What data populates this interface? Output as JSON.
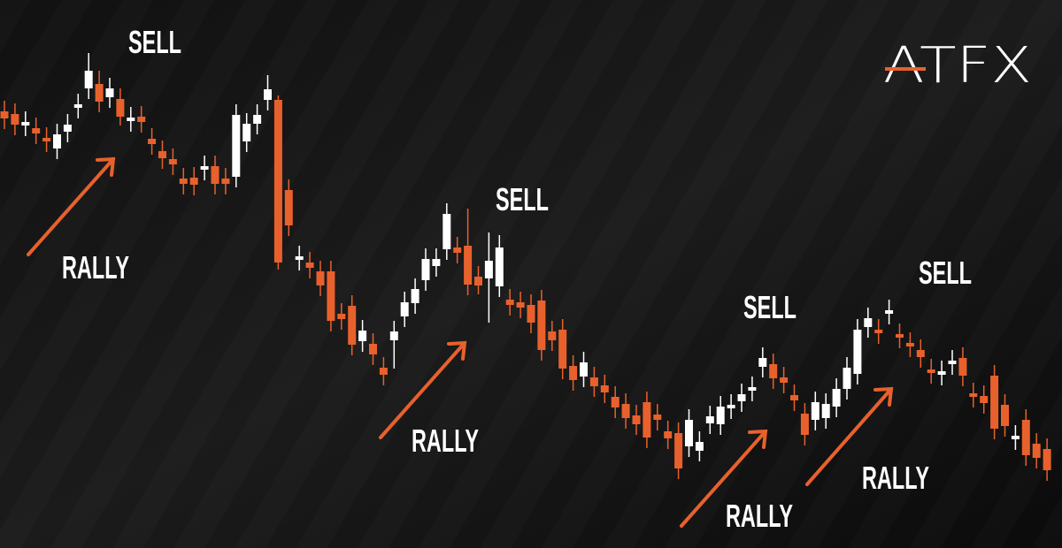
{
  "chart_data": {
    "type": "candlestick",
    "up_color": "#ffffff",
    "down_color": "#e8612c",
    "ylim": [
      0,
      620
    ],
    "ohlc": [
      [
        494,
        506,
        474,
        486
      ],
      [
        491,
        503,
        467,
        479
      ],
      [
        478,
        494,
        466,
        482
      ],
      [
        475,
        487,
        457,
        469
      ],
      [
        464,
        476,
        448,
        460
      ],
      [
        452,
        480,
        440,
        468
      ],
      [
        471,
        491,
        459,
        479
      ],
      [
        498,
        514,
        486,
        502
      ],
      [
        520,
        560,
        508,
        540
      ],
      [
        525,
        540,
        493,
        505
      ],
      [
        510,
        532,
        498,
        520
      ],
      [
        508,
        520,
        478,
        488
      ],
      [
        483,
        499,
        471,
        487
      ],
      [
        488,
        500,
        470,
        482
      ],
      [
        463,
        475,
        445,
        457
      ],
      [
        449,
        461,
        429,
        441
      ],
      [
        440,
        452,
        422,
        434
      ],
      [
        418,
        430,
        400,
        412
      ],
      [
        419,
        431,
        399,
        411
      ],
      [
        428,
        444,
        416,
        432
      ],
      [
        432,
        444,
        400,
        412
      ],
      [
        418,
        430,
        400,
        412
      ],
      [
        420,
        502,
        408,
        490
      ],
      [
        460,
        492,
        448,
        480
      ],
      [
        480,
        502,
        468,
        490
      ],
      [
        507,
        535,
        495,
        519
      ],
      [
        507,
        512,
        315,
        323
      ],
      [
        405,
        417,
        353,
        365
      ],
      [
        326,
        342,
        314,
        330
      ],
      [
        323,
        335,
        305,
        317
      ],
      [
        313,
        325,
        285,
        297
      ],
      [
        313,
        325,
        245,
        257
      ],
      [
        265,
        277,
        247,
        259
      ],
      [
        274,
        286,
        218,
        230
      ],
      [
        234,
        258,
        222,
        246
      ],
      [
        231,
        243,
        207,
        219
      ],
      [
        204,
        216,
        184,
        196
      ],
      [
        235,
        257,
        203,
        245
      ],
      [
        262,
        290,
        250,
        278
      ],
      [
        277,
        305,
        265,
        293
      ],
      [
        303,
        339,
        291,
        327
      ],
      [
        319,
        339,
        307,
        327
      ],
      [
        338,
        390,
        326,
        378
      ],
      [
        340,
        352,
        322,
        334
      ],
      [
        342,
        384,
        286,
        298
      ],
      [
        307,
        319,
        287,
        297
      ],
      [
        305,
        357,
        255,
        325
      ],
      [
        296,
        354,
        284,
        340
      ],
      [
        281,
        293,
        263,
        275
      ],
      [
        278,
        290,
        260,
        272
      ],
      [
        275,
        287,
        243,
        255
      ],
      [
        280,
        292,
        212,
        224
      ],
      [
        245,
        257,
        223,
        235
      ],
      [
        247,
        259,
        191,
        203
      ],
      [
        206,
        218,
        178,
        190
      ],
      [
        194,
        222,
        182,
        210
      ],
      [
        193,
        205,
        171,
        183
      ],
      [
        184,
        196,
        164,
        176
      ],
      [
        171,
        183,
        147,
        159
      ],
      [
        163,
        175,
        135,
        147
      ],
      [
        150,
        162,
        128,
        140
      ],
      [
        165,
        177,
        113,
        125
      ],
      [
        151,
        163,
        133,
        145
      ],
      [
        132,
        144,
        112,
        124
      ],
      [
        130,
        142,
        78,
        90
      ],
      [
        115,
        157,
        103,
        145
      ],
      [
        110,
        132,
        98,
        120
      ],
      [
        141,
        161,
        129,
        149
      ],
      [
        140,
        172,
        128,
        160
      ],
      [
        158,
        174,
        146,
        162
      ],
      [
        166,
        186,
        154,
        174
      ],
      [
        178,
        194,
        166,
        182
      ],
      [
        205,
        227,
        193,
        215
      ],
      [
        208,
        220,
        180,
        192
      ],
      [
        193,
        205,
        175,
        187
      ],
      [
        173,
        185,
        155,
        167
      ],
      [
        152,
        164,
        116,
        128
      ],
      [
        145,
        177,
        133,
        165
      ],
      [
        147,
        175,
        135,
        163
      ],
      [
        160,
        192,
        148,
        180
      ],
      [
        180,
        216,
        168,
        204
      ],
      [
        197,
        259,
        185,
        247
      ],
      [
        250,
        272,
        238,
        260
      ],
      [
        247,
        259,
        231,
        243
      ],
      [
        265,
        281,
        253,
        269
      ],
      [
        242,
        254,
        226,
        238
      ],
      [
        232,
        244,
        216,
        228
      ],
      [
        224,
        236,
        204,
        216
      ],
      [
        202,
        214,
        186,
        198
      ],
      [
        196,
        212,
        184,
        200
      ],
      [
        208,
        224,
        196,
        212
      ],
      [
        215,
        227,
        183,
        195
      ],
      [
        175,
        187,
        159,
        171
      ],
      [
        172,
        184,
        152,
        164
      ],
      [
        195,
        207,
        123,
        135
      ],
      [
        162,
        174,
        126,
        138
      ],
      [
        123,
        139,
        111,
        127
      ],
      [
        145,
        157,
        93,
        105
      ],
      [
        118,
        130,
        90,
        102
      ],
      [
        112,
        124,
        76,
        88
      ]
    ],
    "annotations": [
      "SELL",
      "RALLY",
      "SELL",
      "RALLY",
      "SELL",
      "RALLY",
      "SELL",
      "RALLY"
    ],
    "logo": "ATFX"
  }
}
